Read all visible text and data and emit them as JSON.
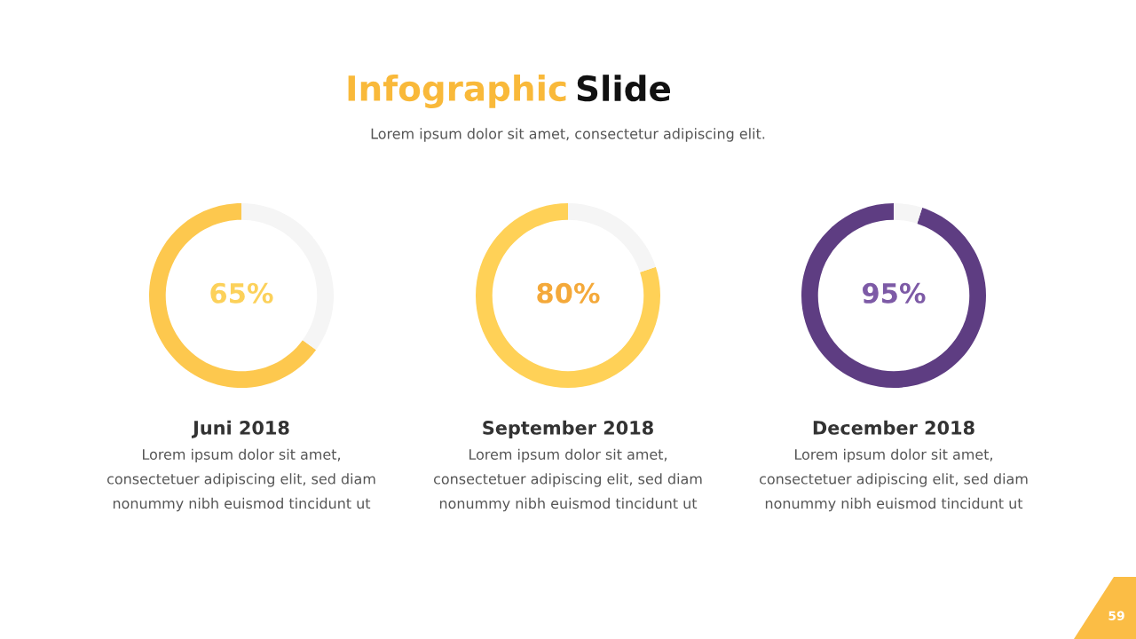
{
  "chart_data": [
    {
      "type": "other",
      "title": "Infographic Slide",
      "subtitle": "Lorem ipsum dolor sit amet, consectetur adipiscing elit.",
      "annotations": [
        "59"
      ]
    },
    {
      "type": "donut",
      "title": "Juni 2018",
      "categories": [
        null,
        null
      ],
      "values": [
        65,
        35
      ],
      "colors": [
        "#fdc84e",
        "#f5f5f5"
      ],
      "value_labels": [
        "65%",
        null
      ],
      "annotations": [
        "Lorem ipsum dolor sit amet,\nconsectetuer adipiscing elit, sed diam\nnonummy nibh euismod tincidunt ut"
      ]
    },
    {
      "type": "donut",
      "title": "September 2018",
      "categories": [
        null,
        null
      ],
      "values": [
        80,
        20
      ],
      "colors": [
        "#ffd157",
        "#f5f5f5"
      ],
      "value_labels": [
        "80%",
        null
      ],
      "annotations": [
        "Lorem ipsum dolor sit amet,\nconsectetuer adipiscing elit, sed diam\nnonummy nibh euismod tincidunt ut"
      ]
    },
    {
      "type": "donut",
      "title": "December 2018",
      "categories": [
        null,
        null
      ],
      "values": [
        95,
        5
      ],
      "colors": [
        "#5e3d82",
        "#f5f5f5"
      ],
      "value_labels": [
        "95%",
        null
      ],
      "annotations": [
        "Lorem ipsum dolor sit amet,\nconsectetuer adipiscing elit, sed diam\nnonummy nibh euismod tincidunt ut"
      ]
    }
  ]
}
